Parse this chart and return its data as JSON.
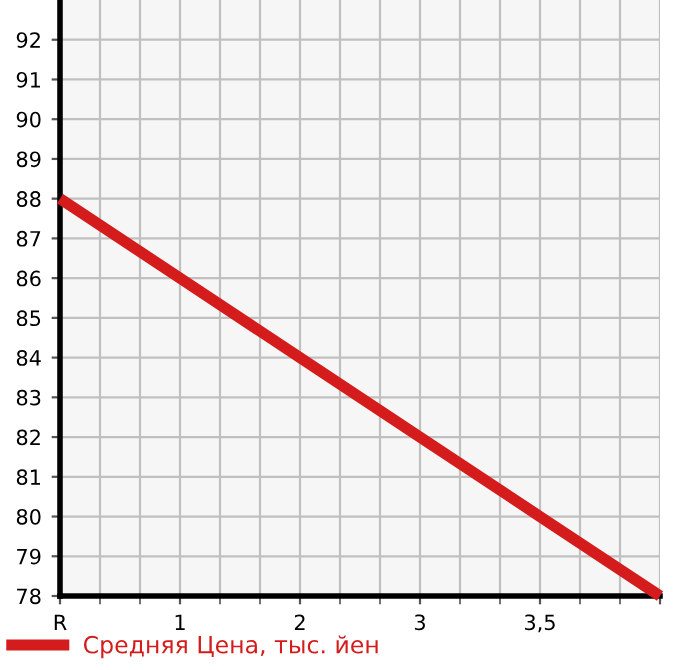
{
  "chart_data": {
    "type": "line",
    "categories": [
      "R",
      "1",
      "2",
      "3",
      "3,5",
      null
    ],
    "series": [
      {
        "name": "Средняя Цена, тыс. йен",
        "color": "#d41c1c",
        "values": [
          88,
          86,
          84,
          82,
          80,
          78
        ]
      }
    ],
    "ylim": [
      78,
      93
    ],
    "yticks": [
      78,
      79,
      80,
      81,
      82,
      83,
      84,
      85,
      86,
      87,
      88,
      89,
      90,
      91,
      92
    ],
    "grid": true,
    "legend": "bottom left",
    "marker": "none",
    "line_style": "solid"
  }
}
